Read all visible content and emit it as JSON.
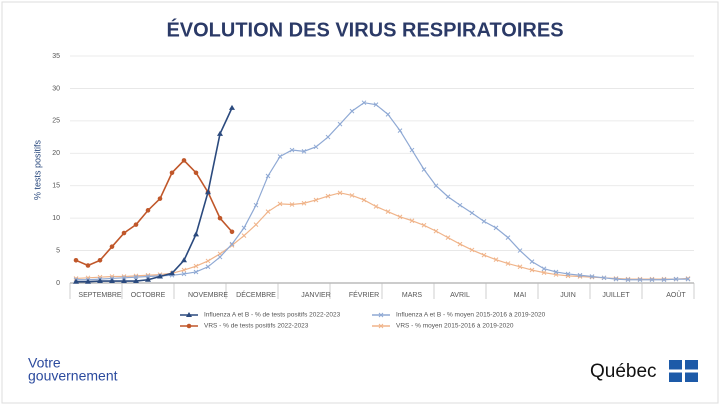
{
  "chart_data": {
    "type": "line",
    "title": "ÉVOLUTION DES VIRUS RESPIRATOIRES",
    "y_label": "% tests positifs",
    "categories": [
      null,
      null,
      "SEPTEMBRE",
      null,
      null,
      null,
      "OCTOBRE",
      null,
      null,
      null,
      null,
      "NOVEMBRE",
      null,
      null,
      null,
      "DÉCEMBRE",
      null,
      null,
      null,
      null,
      "JANVIER",
      null,
      null,
      null,
      "FÉVRIER",
      null,
      null,
      null,
      "MARS",
      null,
      null,
      null,
      "AVRIL",
      null,
      null,
      null,
      null,
      "MAI",
      null,
      null,
      null,
      "JUIN",
      null,
      null,
      null,
      "JUILLET",
      null,
      null,
      null,
      null,
      "AOÛT",
      null
    ],
    "ylim": [
      0,
      35
    ],
    "yticks": [
      0,
      5,
      10,
      15,
      20,
      25,
      30,
      35
    ],
    "grid": true,
    "legend": "bottom",
    "series": [
      {
        "name": "Influenza A et B - % de tests positifs 2022-2023",
        "color": "#2b4a7e",
        "marker": "triangle",
        "values": [
          0.2,
          0.2,
          0.3,
          0.3,
          0.3,
          0.3,
          0.5,
          1,
          1.5,
          3.5,
          7.5,
          14,
          23,
          27,
          null,
          null,
          null,
          null,
          null,
          null,
          null,
          null,
          null,
          null,
          null,
          null,
          null,
          null,
          null,
          null,
          null,
          null,
          null,
          null,
          null,
          null,
          null,
          null,
          null,
          null,
          null,
          null,
          null,
          null,
          null,
          null,
          null,
          null,
          null,
          null,
          null,
          null
        ]
      },
      {
        "name": "VRS - % de tests positifs 2022-2023",
        "color": "#c0572a",
        "marker": "circle",
        "values": [
          3.5,
          2.7,
          3.5,
          5.6,
          7.7,
          9,
          11.2,
          13,
          17,
          18.9,
          17,
          14,
          10,
          7.9,
          null,
          null,
          null,
          null,
          null,
          null,
          null,
          null,
          null,
          null,
          null,
          null,
          null,
          null,
          null,
          null,
          null,
          null,
          null,
          null,
          null,
          null,
          null,
          null,
          null,
          null,
          null,
          null,
          null,
          null,
          null,
          null,
          null,
          null,
          null,
          null,
          null,
          null
        ]
      },
      {
        "name": "Influenza A et B - % moyen 2015-2016 à 2019-2020",
        "color": "#8fa9d4",
        "marker": "cross",
        "values": [
          0.5,
          0.5,
          0.6,
          0.7,
          0.8,
          0.9,
          1,
          1.1,
          1.2,
          1.4,
          1.7,
          2.5,
          4,
          6,
          8.5,
          12,
          16.5,
          19.5,
          20.5,
          20.3,
          21,
          22.5,
          24.5,
          26.5,
          27.8,
          27.5,
          26,
          23.5,
          20.5,
          17.5,
          15,
          13.3,
          12,
          10.8,
          9.5,
          8.5,
          7,
          5,
          3.3,
          2.2,
          1.7,
          1.4,
          1.2,
          1,
          0.8,
          0.6,
          0.5,
          0.5,
          0.5,
          0.5,
          0.6,
          0.6
        ]
      },
      {
        "name": "VRS - % moyen 2015-2016 à 2019-2020",
        "color": "#f0b48a",
        "marker": "cross",
        "values": [
          0.7,
          0.8,
          0.9,
          1,
          1,
          1.1,
          1.2,
          1.3,
          1.5,
          2,
          2.6,
          3.4,
          4.5,
          5.8,
          7.3,
          9,
          11,
          12.2,
          12.1,
          12.3,
          12.8,
          13.4,
          13.9,
          13.5,
          12.8,
          11.8,
          11,
          10.2,
          9.6,
          8.9,
          8,
          7,
          6,
          5.1,
          4.3,
          3.6,
          3,
          2.5,
          2,
          1.6,
          1.3,
          1.1,
          1,
          0.9,
          0.8,
          0.7,
          0.6,
          0.6,
          0.6,
          0.6,
          0.6,
          0.7
        ]
      }
    ]
  },
  "logos": {
    "left": [
      "Votre",
      "gouvernement"
    ],
    "right": "Québec"
  }
}
